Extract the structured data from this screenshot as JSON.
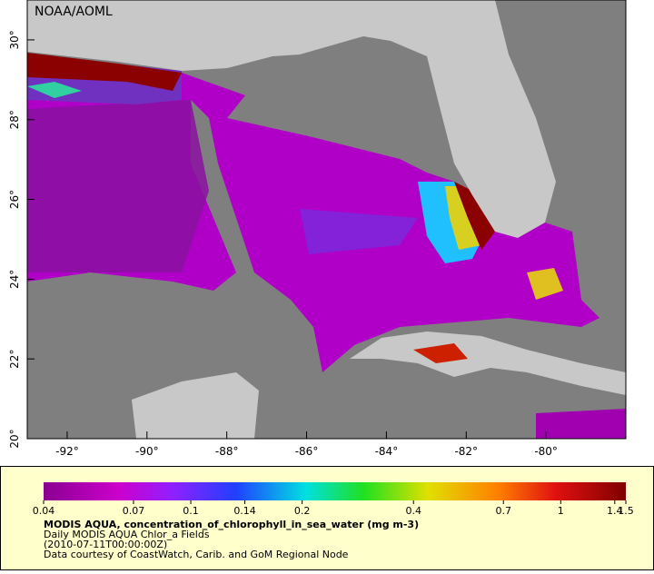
{
  "map": {
    "credit": "NOAA/AOML",
    "xlim": [
      -93,
      -78
    ],
    "ylim": [
      20,
      31
    ],
    "xticks": [
      {
        "value": -92,
        "label": "-92°"
      },
      {
        "value": -90,
        "label": "-90°"
      },
      {
        "value": -88,
        "label": "-88°"
      },
      {
        "value": -86,
        "label": "-86°"
      },
      {
        "value": -84,
        "label": "-84°"
      },
      {
        "value": -82,
        "label": "-82°"
      },
      {
        "value": -80,
        "label": "-80°"
      }
    ],
    "yticks": [
      {
        "value": 20,
        "label": "20°"
      },
      {
        "value": 22,
        "label": "22°"
      },
      {
        "value": 24,
        "label": "24°"
      },
      {
        "value": 26,
        "label": "26°"
      },
      {
        "value": 28,
        "label": "28°"
      },
      {
        "value": 30,
        "label": "30°"
      }
    ],
    "colorbar": {
      "log_scale": true,
      "lim": [
        0.04,
        1.5
      ],
      "ticks": [
        0.04,
        0.07,
        0.1,
        0.14,
        0.2,
        0.4,
        0.7,
        1,
        1.4,
        1.5
      ],
      "title": "MODIS AQUA, concentration_of_chlorophyll_in_sea_water (mg m-3)",
      "lines": [
        "Daily MODIS AQUA Chlor_a Fields",
        "(2010-07-11T00:00:00Z)",
        "Data courtesy of CoastWatch, Carib. and GoM Regional Node"
      ]
    }
  }
}
